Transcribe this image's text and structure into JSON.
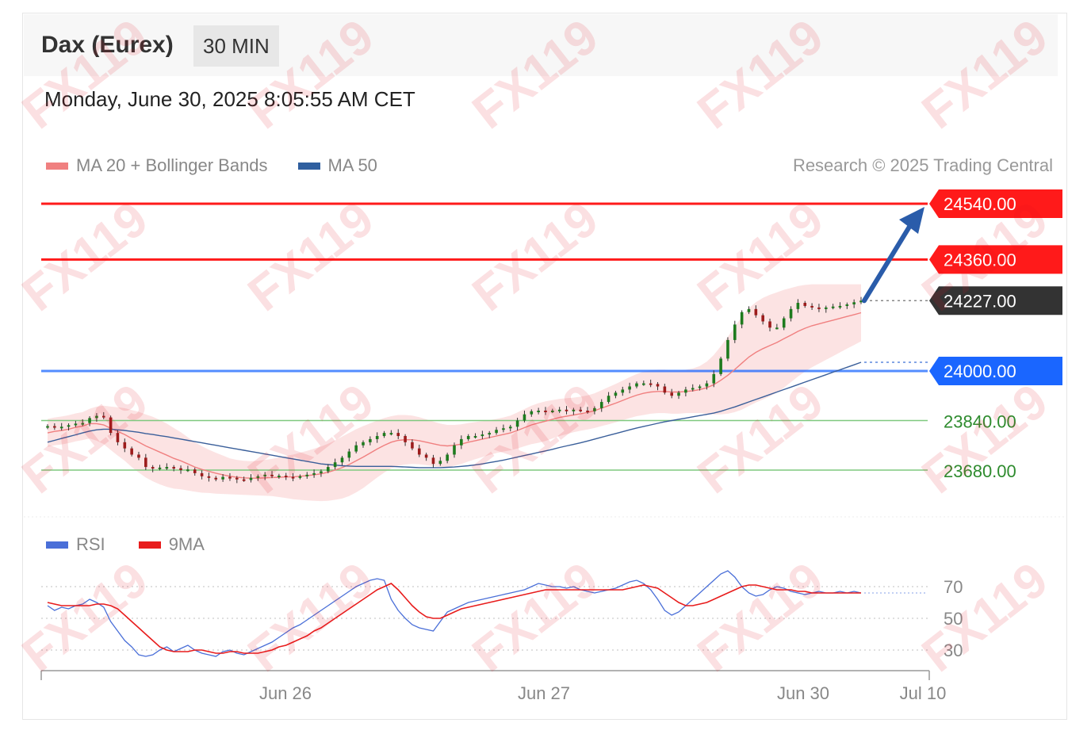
{
  "header": {
    "instrument": "Dax (Eurex)",
    "timeframe": "30 MIN",
    "datetime": "Monday, June 30, 2025 8:05:55 AM CET",
    "credit": "Research © 2025 Trading Central",
    "watermark": "FX119"
  },
  "legend_main": [
    {
      "label": "MA 20 + Bollinger Bands",
      "color": "#f08080"
    },
    {
      "label": "MA 50",
      "color": "#2f5f9f"
    }
  ],
  "legend_rsi": [
    {
      "label": "RSI",
      "color": "#4a6fd8"
    },
    {
      "label": "9MA",
      "color": "#e81c1c"
    }
  ],
  "colors": {
    "resistance": "#ff1a1a",
    "pivot": "#1a66ff",
    "support": "#7fc97f",
    "current": "#333333",
    "up_candle": "#1e7b1e",
    "down_candle": "#9c1c1c",
    "band_fill": "#fbd9d9",
    "arrow": "#2a5caa"
  },
  "chart_data": [
    {
      "type": "candlestick",
      "ylim": [
        23590,
        24600
      ],
      "xaxis_labels": [
        "Jun 26",
        "Jun 27",
        "Jun 30",
        "Jul 10"
      ],
      "levels": [
        {
          "value": 24540.0,
          "label": "24540.00",
          "kind": "resistance"
        },
        {
          "value": 24360.0,
          "label": "24360.00",
          "kind": "resistance"
        },
        {
          "value": 24227.0,
          "label": "24227.00",
          "kind": "current"
        },
        {
          "value": 24000.0,
          "label": "24000.00",
          "kind": "pivot"
        },
        {
          "value": 23840.0,
          "label": "23840.00",
          "kind": "support"
        },
        {
          "value": 23680.0,
          "label": "23680.00",
          "kind": "support"
        }
      ],
      "close": [
        23822,
        23818,
        23820,
        23825,
        23830,
        23832,
        23848,
        23855,
        23850,
        23800,
        23770,
        23750,
        23730,
        23720,
        23690,
        23685,
        23688,
        23690,
        23686,
        23680,
        23682,
        23670,
        23660,
        23655,
        23650,
        23658,
        23655,
        23650,
        23648,
        23655,
        23660,
        23665,
        23660,
        23662,
        23658,
        23656,
        23660,
        23665,
        23670,
        23676,
        23690,
        23705,
        23720,
        23740,
        23760,
        23770,
        23780,
        23790,
        23800,
        23800,
        23790,
        23770,
        23750,
        23730,
        23720,
        23700,
        23710,
        23730,
        23760,
        23780,
        23790,
        23790,
        23795,
        23800,
        23810,
        23815,
        23820,
        23840,
        23860,
        23870,
        23872,
        23870,
        23872,
        23875,
        23870,
        23875,
        23872,
        23870,
        23880,
        23900,
        23920,
        23930,
        23940,
        23950,
        23960,
        23960,
        23958,
        23950,
        23930,
        23920,
        23930,
        23940,
        23945,
        23950,
        23960,
        23990,
        24040,
        24100,
        24150,
        24190,
        24200,
        24180,
        24160,
        24140,
        24140,
        24170,
        24200,
        24220,
        24210,
        24205,
        24200,
        24205,
        24208,
        24210,
        24215,
        24222,
        24227
      ],
      "ma20": [
        23800,
        23805,
        23808,
        23812,
        23818,
        23822,
        23830,
        23830,
        23826,
        23815,
        23805,
        23795,
        23782,
        23770,
        23758,
        23748,
        23738,
        23728,
        23718,
        23710,
        23700,
        23690,
        23682,
        23676,
        23670,
        23665,
        23660,
        23657,
        23655,
        23654,
        23654,
        23655,
        23656,
        23657,
        23658,
        23658,
        23660,
        23662,
        23665,
        23668,
        23673,
        23680,
        23688,
        23698,
        23710,
        23722,
        23735,
        23748,
        23760,
        23770,
        23776,
        23778,
        23778,
        23775,
        23770,
        23765,
        23760,
        23758,
        23760,
        23764,
        23770,
        23775,
        23780,
        23785,
        23790,
        23795,
        23800,
        23808,
        23817,
        23826,
        23832,
        23838,
        23844,
        23850,
        23854,
        23858,
        23862,
        23866,
        23872,
        23880,
        23888,
        23896,
        23905,
        23914,
        23922,
        23928,
        23932,
        23934,
        23934,
        23932,
        23932,
        23934,
        23936,
        23940,
        23946,
        23956,
        23970,
        23986,
        24005,
        24025,
        24045,
        24060,
        24072,
        24082,
        24092,
        24104,
        24116,
        24128,
        24138,
        24146,
        24152,
        24158,
        24164,
        24170,
        24176,
        24182,
        24188
      ],
      "ma50": [
        23770,
        23776,
        23782,
        23788,
        23794,
        23800,
        23806,
        23810,
        23812,
        23812,
        23810,
        23808,
        23805,
        23802,
        23798,
        23795,
        23791,
        23788,
        23784,
        23780,
        23776,
        23772,
        23768,
        23764,
        23760,
        23756,
        23752,
        23748,
        23744,
        23740,
        23736,
        23732,
        23728,
        23724,
        23720,
        23716,
        23712,
        23708,
        23704,
        23700,
        23698,
        23696,
        23694,
        23693,
        23692,
        23692,
        23692,
        23692,
        23692,
        23692,
        23691,
        23690,
        23689,
        23688,
        23688,
        23688,
        23688,
        23689,
        23690,
        23692,
        23694,
        23697,
        23700,
        23704,
        23708,
        23712,
        23717,
        23722,
        23727,
        23732,
        23737,
        23742,
        23747,
        23753,
        23758,
        23763,
        23768,
        23774,
        23780,
        23786,
        23792,
        23798,
        23804,
        23810,
        23816,
        23821,
        23826,
        23831,
        23836,
        23840,
        23844,
        23848,
        23852,
        23856,
        23860,
        23864,
        23870,
        23877,
        23884,
        23892,
        23900,
        23908,
        23916,
        23924,
        23932,
        23940,
        23948,
        23956,
        23964,
        23972,
        23980,
        23988,
        23996,
        24004,
        24012,
        24020,
        24028
      ],
      "bb_half_width": [
        45,
        45,
        45,
        45,
        45,
        45,
        48,
        55,
        62,
        70,
        78,
        85,
        92,
        98,
        102,
        104,
        104,
        102,
        98,
        92,
        86,
        80,
        75,
        70,
        66,
        62,
        58,
        56,
        55,
        55,
        56,
        58,
        60,
        64,
        68,
        72,
        76,
        80,
        84,
        88,
        92,
        96,
        100,
        102,
        102,
        100,
        96,
        92,
        88,
        84,
        82,
        80,
        78,
        76,
        74,
        72,
        70,
        68,
        66,
        64,
        62,
        60,
        58,
        56,
        55,
        55,
        56,
        58,
        60,
        62,
        64,
        64,
        62,
        60,
        58,
        56,
        55,
        55,
        56,
        58,
        60,
        62,
        64,
        66,
        68,
        70,
        70,
        70,
        70,
        70,
        70,
        70,
        72,
        76,
        84,
        96,
        110,
        124,
        138,
        150,
        158,
        162,
        164,
        164,
        162,
        158,
        152,
        146,
        140,
        134,
        128,
        122,
        116,
        110,
        104,
        98,
        92
      ],
      "rsi": [
        58,
        55,
        57,
        56,
        58,
        59,
        62,
        60,
        57,
        48,
        42,
        36,
        32,
        27,
        26,
        27,
        30,
        32,
        29,
        31,
        33,
        30,
        28,
        27,
        26,
        29,
        30,
        28,
        27,
        29,
        31,
        33,
        35,
        38,
        41,
        44,
        46,
        49,
        52,
        55,
        58,
        61,
        64,
        67,
        70,
        72,
        74,
        75,
        74,
        62,
        55,
        50,
        46,
        44,
        43,
        42,
        48,
        54,
        56,
        58,
        60,
        61,
        62,
        63,
        64,
        65,
        66,
        67,
        68,
        70,
        72,
        71,
        70,
        70,
        69,
        70,
        68,
        67,
        66,
        67,
        68,
        69,
        71,
        73,
        74,
        72,
        68,
        62,
        55,
        52,
        54,
        58,
        62,
        66,
        70,
        74,
        78,
        80,
        76,
        70,
        66,
        64,
        65,
        68,
        70,
        69,
        67,
        66,
        65,
        66,
        67,
        66,
        66,
        67,
        66,
        67,
        66
      ],
      "rsi_ma9": [
        60,
        59,
        58,
        58,
        58,
        58,
        58,
        59,
        59,
        58,
        56,
        52,
        48,
        44,
        40,
        36,
        32,
        30,
        29,
        29,
        29,
        30,
        30,
        29,
        28,
        28,
        29,
        29,
        28,
        28,
        28,
        29,
        30,
        32,
        33,
        35,
        37,
        39,
        42,
        44,
        47,
        50,
        53,
        56,
        59,
        62,
        65,
        68,
        70,
        72,
        68,
        63,
        58,
        54,
        51,
        50,
        50,
        52,
        54,
        56,
        57,
        58,
        59,
        60,
        61,
        62,
        63,
        64,
        65,
        66,
        67,
        68,
        68,
        68,
        68,
        68,
        68,
        68,
        68,
        68,
        68,
        68,
        68,
        69,
        70,
        71,
        70,
        69,
        66,
        63,
        60,
        58,
        58,
        59,
        60,
        62,
        64,
        66,
        68,
        70,
        71,
        71,
        70,
        69,
        68,
        68,
        68,
        67,
        67,
        66,
        66,
        66,
        66,
        66,
        66,
        66,
        66
      ],
      "rsi_ylim": [
        20,
        90
      ],
      "rsi_levels": [
        "70",
        "50",
        "30"
      ]
    }
  ]
}
